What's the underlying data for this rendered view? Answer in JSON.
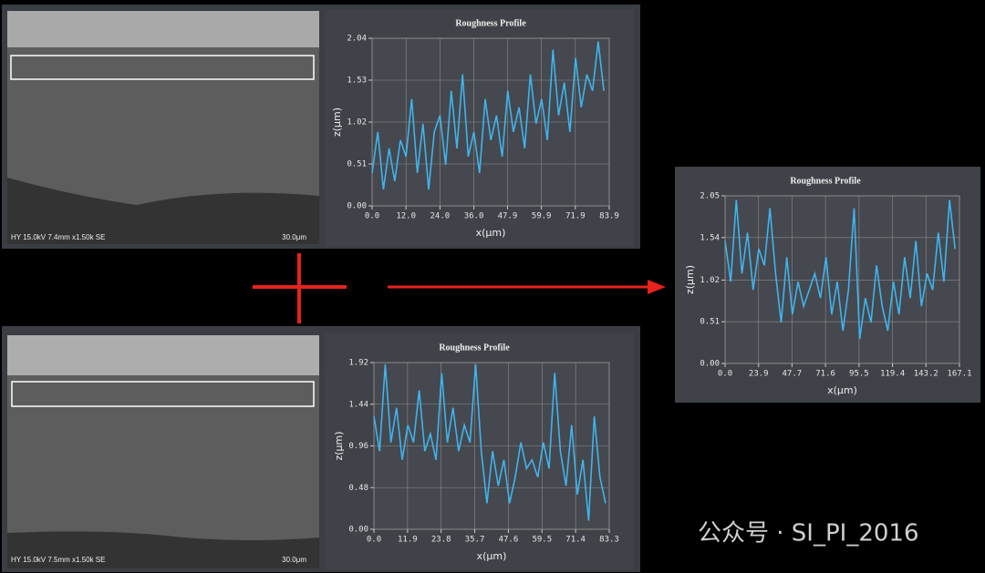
{
  "chart_data": [
    {
      "type": "line",
      "title": "Roughness Profile",
      "x_label": "x(μm)",
      "y_label": "z(μm)",
      "x": [
        0,
        2,
        4,
        6,
        8,
        10,
        12,
        14,
        16,
        18,
        20,
        22,
        24,
        26,
        28,
        30,
        32,
        34,
        36,
        38,
        40,
        42,
        44,
        46,
        48,
        50,
        52,
        54,
        56,
        58,
        60,
        62,
        64,
        66,
        68,
        70,
        72,
        74,
        76,
        78,
        80,
        82
      ],
      "series": [
        {
          "color": "#3fb4ee",
          "values": [
            0.4,
            0.9,
            0.2,
            0.7,
            0.3,
            0.8,
            0.6,
            1.3,
            0.4,
            1.0,
            0.2,
            0.9,
            1.1,
            0.5,
            1.4,
            0.7,
            1.6,
            0.6,
            0.9,
            0.4,
            1.3,
            0.8,
            1.1,
            0.6,
            1.4,
            0.9,
            1.2,
            0.7,
            1.6,
            1.0,
            1.3,
            0.8,
            1.9,
            1.1,
            1.5,
            0.9,
            1.8,
            1.2,
            1.6,
            1.4,
            2.0,
            1.4
          ]
        }
      ],
      "xlim": [
        0,
        83.9
      ],
      "xticks": [
        {
          "value": 0,
          "label": "0.0"
        },
        {
          "value": 12,
          "label": "12.0"
        },
        {
          "value": 24,
          "label": "24.0"
        },
        {
          "value": 36,
          "label": "36.0"
        },
        47.9,
        59.9,
        71.9,
        83.9
      ],
      "ylim": [
        0,
        2.04
      ],
      "yticks": [
        {
          "value": 0,
          "label": "0.00"
        },
        0.51,
        1.02,
        1.53,
        2.04
      ],
      "grid": true
    },
    {
      "type": "line",
      "title": "Roughness Profile",
      "x_label": "x(μm)",
      "y_label": "z(μm)",
      "x": [
        0,
        4,
        8,
        12,
        16,
        20,
        24,
        28,
        32,
        36,
        40,
        44,
        48,
        52,
        56,
        60,
        64,
        68,
        72,
        76,
        80,
        84,
        88,
        92,
        96,
        100,
        104,
        108,
        112,
        116,
        120,
        124,
        128,
        132,
        136,
        140,
        144,
        148,
        152,
        156,
        160,
        164
      ],
      "series": [
        {
          "color": "#3fb4ee",
          "values": [
            1.5,
            1.0,
            2.0,
            1.1,
            1.6,
            0.9,
            1.4,
            1.2,
            1.9,
            1.1,
            0.5,
            1.3,
            0.6,
            1.0,
            0.7,
            0.9,
            1.1,
            0.8,
            1.3,
            0.6,
            1.0,
            0.4,
            0.9,
            1.9,
            0.3,
            0.8,
            0.5,
            1.2,
            0.7,
            0.4,
            1.0,
            0.6,
            1.3,
            0.8,
            1.5,
            0.7,
            1.1,
            0.9,
            1.6,
            1.0,
            2.0,
            1.4
          ]
        }
      ],
      "xlim": [
        0,
        167.1
      ],
      "xticks": [
        {
          "value": 0,
          "label": "0.0"
        },
        23.9,
        47.7,
        71.6,
        95.5,
        119.4,
        143.2,
        167.1
      ],
      "ylim": [
        0,
        2.05
      ],
      "yticks": [
        {
          "value": 0,
          "label": "0.00"
        },
        0.51,
        1.02,
        1.54,
        2.05
      ],
      "grid": true
    },
    {
      "type": "line",
      "title": "Roughness Profile",
      "x_label": "x(μm)",
      "y_label": "z(μm)",
      "x": [
        0,
        2,
        4,
        6,
        8,
        10,
        12,
        14,
        16,
        18,
        20,
        22,
        24,
        26,
        28,
        30,
        32,
        34,
        36,
        38,
        40,
        42,
        44,
        46,
        48,
        50,
        52,
        54,
        56,
        58,
        60,
        62,
        64,
        66,
        68,
        70,
        72,
        74,
        76,
        78,
        80,
        82
      ],
      "series": [
        {
          "color": "#3fb4ee",
          "values": [
            1.3,
            0.9,
            1.9,
            1.0,
            1.4,
            0.8,
            1.2,
            1.0,
            1.6,
            0.9,
            1.1,
            0.8,
            1.8,
            1.0,
            1.4,
            0.9,
            1.2,
            1.0,
            1.9,
            0.9,
            0.3,
            0.9,
            0.5,
            0.8,
            0.3,
            0.6,
            1.0,
            0.7,
            0.8,
            0.6,
            1.0,
            0.7,
            1.8,
            0.9,
            0.5,
            1.2,
            0.4,
            0.8,
            0.1,
            1.3,
            0.6,
            0.3
          ]
        }
      ],
      "xlim": [
        0,
        83.3
      ],
      "xticks": [
        {
          "value": 0,
          "label": "0.0"
        },
        11.9,
        23.8,
        35.7,
        47.6,
        59.5,
        71.4,
        83.3
      ],
      "ylim": [
        0,
        1.92
      ],
      "yticks": [
        {
          "value": 0,
          "label": "0.00"
        },
        0.48,
        0.96,
        1.44,
        1.92
      ],
      "grid": true
    }
  ],
  "sem_images": [
    {
      "caption": "HY 15.0kV 7.4mm x1.50k SE",
      "scale": "30.0μm"
    },
    {
      "caption": "HY 15.0kV 7.5mm x1.50k SE",
      "scale": "30.0μm"
    }
  ],
  "watermark": "公众号 · SI_PI_2016"
}
